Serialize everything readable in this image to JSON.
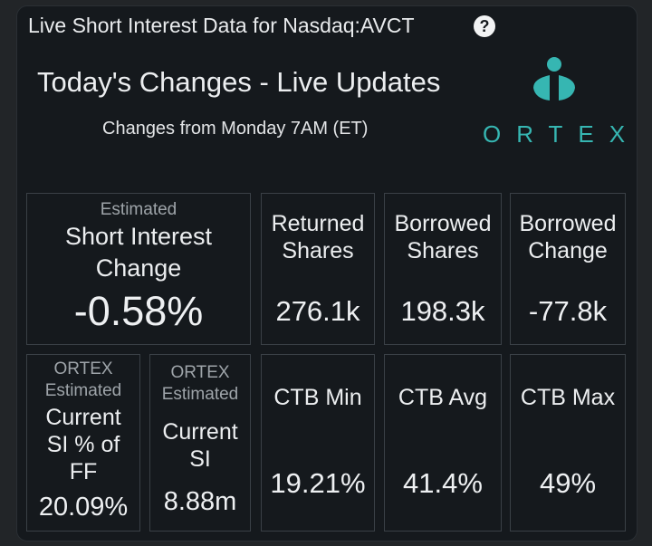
{
  "header": {
    "title": "Live Short Interest Data for Nasdaq:AVCT",
    "help_icon": "?"
  },
  "section": {
    "title": "Today's Changes - Live Updates",
    "subtitle": "Changes from Monday 7AM (ET)"
  },
  "logo": {
    "text": "ORTEX",
    "icon": "ortex-person-icon",
    "color": "#36b6b2"
  },
  "row1": {
    "short_interest": {
      "small_label": "Estimated",
      "label_line1": "Short Interest",
      "label_line2": "Change",
      "value": "-0.58%"
    },
    "returned": {
      "label_line1": "Returned",
      "label_line2": "Shares",
      "value": "276.1k"
    },
    "borrowed": {
      "label_line1": "Borrowed",
      "label_line2": "Shares",
      "value": "198.3k"
    },
    "borrowed_change": {
      "label_line1": "Borrowed",
      "label_line2": "Change",
      "value": "-77.8k"
    }
  },
  "row2": {
    "si_ff": {
      "small_line1": "ORTEX",
      "small_line2": "Estimated",
      "label_line1": "Current",
      "label_line2": "SI % of",
      "label_line3": "FF",
      "value": "20.09%"
    },
    "current_si": {
      "small_line1": "ORTEX",
      "small_line2": "Estimated",
      "label_line1": "Current",
      "label_line2": "SI",
      "value": "8.88m"
    },
    "ctb_min": {
      "label": "CTB Min",
      "value": "19.21%"
    },
    "ctb_avg": {
      "label": "CTB Avg",
      "value": "41.4%"
    },
    "ctb_max": {
      "label": "CTB Max",
      "value": "49%"
    }
  }
}
